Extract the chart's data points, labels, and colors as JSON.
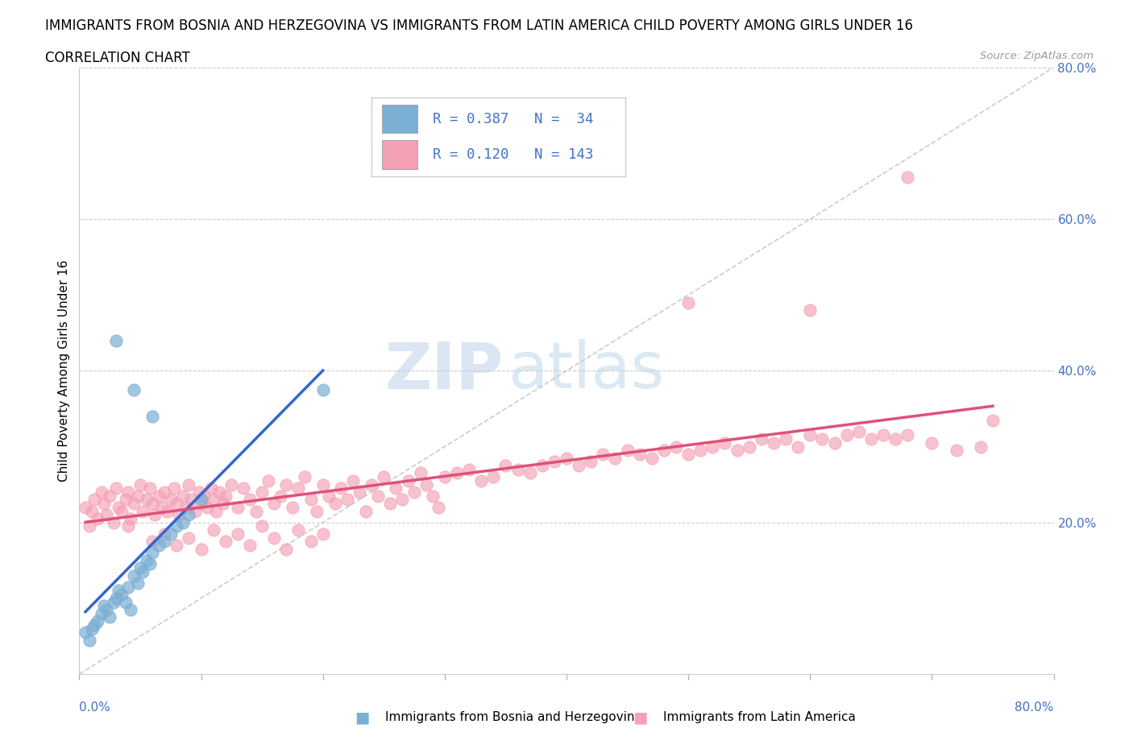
{
  "title": "IMMIGRANTS FROM BOSNIA AND HERZEGOVINA VS IMMIGRANTS FROM LATIN AMERICA CHILD POVERTY AMONG GIRLS UNDER 16",
  "subtitle": "CORRELATION CHART",
  "source": "Source: ZipAtlas.com",
  "ylabel": "Child Poverty Among Girls Under 16",
  "color_bosnia": "#7bafd4",
  "color_latin": "#f4a0b5",
  "color_bosnia_line": "#3366cc",
  "color_latin_line": "#e0507a",
  "color_diag": "#cccccc",
  "watermark_zip": "ZIP",
  "watermark_atlas": "atlas",
  "xlim": [
    0.0,
    0.8
  ],
  "ylim": [
    0.0,
    0.8
  ],
  "bosnia_x": [
    0.005,
    0.008,
    0.01,
    0.012,
    0.015,
    0.018,
    0.02,
    0.022,
    0.025,
    0.028,
    0.03,
    0.032,
    0.035,
    0.038,
    0.04,
    0.042,
    0.045,
    0.048,
    0.05,
    0.052,
    0.055,
    0.058,
    0.06,
    0.065,
    0.07,
    0.075,
    0.08,
    0.085,
    0.09,
    0.1,
    0.03,
    0.045,
    0.06,
    0.2
  ],
  "bosnia_y": [
    0.055,
    0.045,
    0.06,
    0.065,
    0.07,
    0.08,
    0.09,
    0.085,
    0.075,
    0.095,
    0.1,
    0.11,
    0.105,
    0.095,
    0.115,
    0.085,
    0.13,
    0.12,
    0.14,
    0.135,
    0.15,
    0.145,
    0.16,
    0.17,
    0.175,
    0.185,
    0.195,
    0.2,
    0.21,
    0.23,
    0.44,
    0.375,
    0.34,
    0.375
  ],
  "latin_x": [
    0.005,
    0.008,
    0.01,
    0.012,
    0.015,
    0.018,
    0.02,
    0.022,
    0.025,
    0.028,
    0.03,
    0.032,
    0.035,
    0.038,
    0.04,
    0.042,
    0.045,
    0.048,
    0.05,
    0.052,
    0.055,
    0.058,
    0.06,
    0.062,
    0.065,
    0.068,
    0.07,
    0.072,
    0.075,
    0.078,
    0.08,
    0.082,
    0.085,
    0.088,
    0.09,
    0.092,
    0.095,
    0.098,
    0.1,
    0.102,
    0.105,
    0.108,
    0.11,
    0.112,
    0.115,
    0.118,
    0.12,
    0.125,
    0.13,
    0.135,
    0.14,
    0.145,
    0.15,
    0.155,
    0.16,
    0.165,
    0.17,
    0.175,
    0.18,
    0.185,
    0.19,
    0.195,
    0.2,
    0.205,
    0.21,
    0.215,
    0.22,
    0.225,
    0.23,
    0.235,
    0.24,
    0.245,
    0.25,
    0.255,
    0.26,
    0.265,
    0.27,
    0.275,
    0.28,
    0.285,
    0.29,
    0.295,
    0.3,
    0.31,
    0.32,
    0.33,
    0.34,
    0.35,
    0.36,
    0.37,
    0.38,
    0.39,
    0.4,
    0.41,
    0.42,
    0.43,
    0.44,
    0.45,
    0.46,
    0.47,
    0.48,
    0.49,
    0.5,
    0.51,
    0.52,
    0.53,
    0.54,
    0.55,
    0.56,
    0.57,
    0.58,
    0.59,
    0.6,
    0.61,
    0.62,
    0.63,
    0.64,
    0.65,
    0.66,
    0.67,
    0.68,
    0.7,
    0.72,
    0.74,
    0.04,
    0.06,
    0.07,
    0.08,
    0.09,
    0.1,
    0.11,
    0.12,
    0.13,
    0.14,
    0.15,
    0.16,
    0.17,
    0.18,
    0.19,
    0.2,
    0.68,
    0.5,
    0.75,
    0.6
  ],
  "latin_y": [
    0.22,
    0.195,
    0.215,
    0.23,
    0.205,
    0.24,
    0.225,
    0.21,
    0.235,
    0.2,
    0.245,
    0.22,
    0.215,
    0.23,
    0.24,
    0.205,
    0.225,
    0.235,
    0.25,
    0.215,
    0.23,
    0.245,
    0.225,
    0.21,
    0.235,
    0.22,
    0.24,
    0.215,
    0.23,
    0.245,
    0.225,
    0.21,
    0.235,
    0.22,
    0.25,
    0.23,
    0.215,
    0.24,
    0.225,
    0.235,
    0.22,
    0.245,
    0.23,
    0.215,
    0.24,
    0.225,
    0.235,
    0.25,
    0.22,
    0.245,
    0.23,
    0.215,
    0.24,
    0.255,
    0.225,
    0.235,
    0.25,
    0.22,
    0.245,
    0.26,
    0.23,
    0.215,
    0.25,
    0.235,
    0.225,
    0.245,
    0.23,
    0.255,
    0.24,
    0.215,
    0.25,
    0.235,
    0.26,
    0.225,
    0.245,
    0.23,
    0.255,
    0.24,
    0.265,
    0.25,
    0.235,
    0.22,
    0.26,
    0.265,
    0.27,
    0.255,
    0.26,
    0.275,
    0.27,
    0.265,
    0.275,
    0.28,
    0.285,
    0.275,
    0.28,
    0.29,
    0.285,
    0.295,
    0.29,
    0.285,
    0.295,
    0.3,
    0.29,
    0.295,
    0.3,
    0.305,
    0.295,
    0.3,
    0.31,
    0.305,
    0.31,
    0.3,
    0.315,
    0.31,
    0.305,
    0.315,
    0.32,
    0.31,
    0.315,
    0.31,
    0.315,
    0.305,
    0.295,
    0.3,
    0.195,
    0.175,
    0.185,
    0.17,
    0.18,
    0.165,
    0.19,
    0.175,
    0.185,
    0.17,
    0.195,
    0.18,
    0.165,
    0.19,
    0.175,
    0.185,
    0.655,
    0.49,
    0.335,
    0.48
  ]
}
